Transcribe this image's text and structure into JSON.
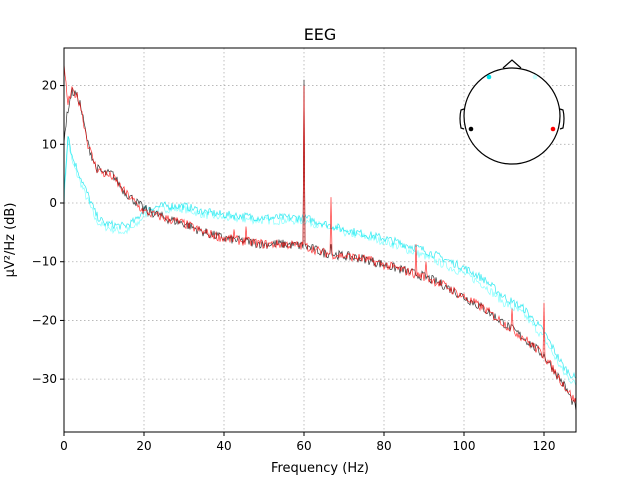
{
  "chart_data": {
    "type": "line",
    "title": "EEG",
    "xlabel": "Frequency (Hz)",
    "ylabel": "µV²/Hz (dB)",
    "xlim": [
      0,
      128
    ],
    "ylim": [
      -39,
      26.4
    ],
    "xticks": [
      0,
      20,
      40,
      60,
      80,
      100,
      120
    ],
    "yticks": [
      20,
      10,
      0,
      -10,
      -20,
      -30
    ],
    "grid": true,
    "legend": "none",
    "inset": "sensor-head-topomap top-right",
    "series": [
      {
        "color": "#66ffff",
        "noise": 0.7,
        "points": [
          [
            0,
            0
          ],
          [
            1,
            11
          ],
          [
            2,
            7
          ],
          [
            5,
            2
          ],
          [
            8,
            -3
          ],
          [
            10,
            -4
          ],
          [
            15,
            -5
          ],
          [
            18,
            -4
          ],
          [
            20,
            -2
          ],
          [
            25,
            -1
          ],
          [
            30,
            -1
          ],
          [
            35,
            -2
          ],
          [
            40,
            -2.5
          ],
          [
            50,
            -3
          ],
          [
            60,
            -3
          ],
          [
            70,
            -5
          ],
          [
            80,
            -6.5
          ],
          [
            90,
            -9
          ],
          [
            100,
            -12
          ],
          [
            105,
            -14
          ],
          [
            110,
            -17
          ],
          [
            115,
            -19
          ],
          [
            120,
            -23
          ],
          [
            125,
            -29
          ],
          [
            128,
            -31
          ]
        ],
        "peaks": []
      },
      {
        "color": "#00e5ee",
        "noise": 0.7,
        "points": [
          [
            0,
            2
          ],
          [
            1,
            12
          ],
          [
            2,
            8
          ],
          [
            5,
            3
          ],
          [
            8,
            -2
          ],
          [
            10,
            -3.5
          ],
          [
            15,
            -4
          ],
          [
            18,
            -3
          ],
          [
            20,
            -1
          ],
          [
            25,
            -0.5
          ],
          [
            30,
            -0.5
          ],
          [
            35,
            -1.5
          ],
          [
            40,
            -2
          ],
          [
            50,
            -2.5
          ],
          [
            60,
            -2.5
          ],
          [
            70,
            -4.5
          ],
          [
            80,
            -6
          ],
          [
            90,
            -8
          ],
          [
            100,
            -11
          ],
          [
            105,
            -13
          ],
          [
            110,
            -16
          ],
          [
            115,
            -18
          ],
          [
            120,
            -22
          ],
          [
            125,
            -28
          ],
          [
            128,
            -30
          ]
        ],
        "peaks": [
          [
            112,
            -17
          ]
        ]
      },
      {
        "color": "#000000",
        "noise": 0.8,
        "points": [
          [
            0,
            11
          ],
          [
            1,
            16
          ],
          [
            2,
            19
          ],
          [
            3,
            18.5
          ],
          [
            4,
            17
          ],
          [
            6,
            10
          ],
          [
            8,
            6
          ],
          [
            10,
            5
          ],
          [
            12,
            5
          ],
          [
            15,
            2
          ],
          [
            20,
            -1
          ],
          [
            25,
            -2.5
          ],
          [
            30,
            -3.5
          ],
          [
            35,
            -5
          ],
          [
            40,
            -6
          ],
          [
            45,
            -6.5
          ],
          [
            50,
            -7
          ],
          [
            55,
            -7
          ],
          [
            59.5,
            -7.3
          ],
          [
            61,
            -7.5
          ],
          [
            65,
            -8.5
          ],
          [
            70,
            -9
          ],
          [
            75,
            -9.5
          ],
          [
            80,
            -10.5
          ],
          [
            85,
            -11.5
          ],
          [
            90,
            -12.5
          ],
          [
            95,
            -14
          ],
          [
            100,
            -16
          ],
          [
            105,
            -18
          ],
          [
            110,
            -20.5
          ],
          [
            115,
            -23
          ],
          [
            120,
            -26
          ],
          [
            125,
            -31
          ],
          [
            128,
            -35
          ]
        ],
        "peaks": [
          [
            60,
            21
          ],
          [
            21,
            -2
          ],
          [
            66.7,
            -7
          ]
        ]
      },
      {
        "color": "#ff0000",
        "noise": 0.8,
        "points": [
          [
            0,
            23
          ],
          [
            0.5,
            20
          ],
          [
            1,
            17
          ],
          [
            2,
            19
          ],
          [
            3,
            18.5
          ],
          [
            4,
            17
          ],
          [
            6,
            10
          ],
          [
            8,
            6
          ],
          [
            10,
            5
          ],
          [
            12,
            4.5
          ],
          [
            15,
            2
          ],
          [
            20,
            -1.5
          ],
          [
            25,
            -2.5
          ],
          [
            30,
            -3.5
          ],
          [
            35,
            -5
          ],
          [
            40,
            -6
          ],
          [
            45,
            -6.5
          ],
          [
            50,
            -7
          ],
          [
            55,
            -7
          ],
          [
            59.5,
            -7.3
          ],
          [
            61,
            -7.5
          ],
          [
            65,
            -8.5
          ],
          [
            70,
            -9
          ],
          [
            75,
            -9.5
          ],
          [
            80,
            -10.5
          ],
          [
            85,
            -11.5
          ],
          [
            90,
            -12.5
          ],
          [
            95,
            -14
          ],
          [
            100,
            -16
          ],
          [
            105,
            -18
          ],
          [
            110,
            -20.5
          ],
          [
            115,
            -23
          ],
          [
            120,
            -26
          ],
          [
            125,
            -31
          ],
          [
            128,
            -34
          ]
        ],
        "peaks": [
          [
            60,
            20
          ],
          [
            66.7,
            1
          ],
          [
            45.5,
            -4
          ],
          [
            42.5,
            -4.5
          ],
          [
            88,
            -7
          ],
          [
            90.5,
            -10
          ],
          [
            112,
            -18
          ],
          [
            120,
            -17
          ]
        ]
      }
    ]
  }
}
